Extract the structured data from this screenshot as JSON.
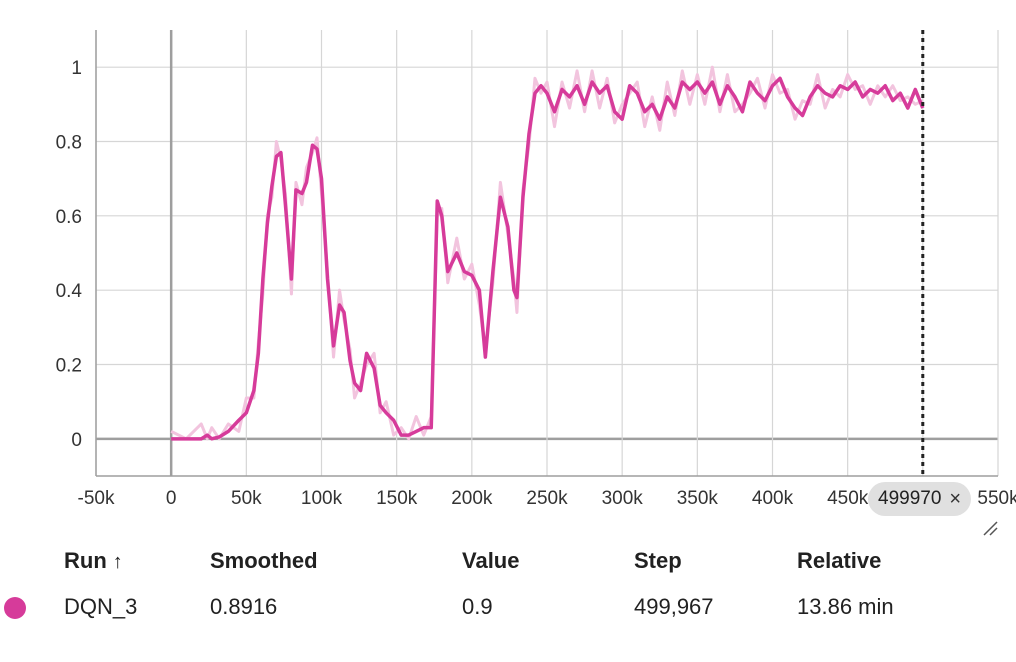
{
  "chart_data": {
    "type": "line",
    "title": "",
    "xlabel": "",
    "ylabel": "",
    "xlim": [
      -50000,
      550000
    ],
    "ylim": [
      -0.1,
      1.1
    ],
    "x_ticks": [
      -50000,
      0,
      50000,
      100000,
      150000,
      200000,
      250000,
      300000,
      350000,
      400000,
      450000,
      500000,
      550000
    ],
    "x_tick_labels": [
      "-50k",
      "0",
      "50k",
      "100k",
      "150k",
      "200k",
      "250k",
      "300k",
      "350k",
      "400k",
      "450k",
      "500k",
      "550k"
    ],
    "y_ticks": [
      0,
      0.2,
      0.4,
      0.6,
      0.8,
      1
    ],
    "y_tick_labels": [
      "0",
      "0.2",
      "0.4",
      "0.6",
      "0.8",
      "1"
    ],
    "grid": true,
    "series": [
      {
        "name": "DQN_3",
        "color": "#d63b9a",
        "raw_color": "#f2c4de",
        "points": [
          [
            0,
            0
          ],
          [
            10000,
            0
          ],
          [
            20000,
            0
          ],
          [
            24000,
            0.01
          ],
          [
            27000,
            0
          ],
          [
            32000,
            0.005
          ],
          [
            38000,
            0.02
          ],
          [
            45000,
            0.05
          ],
          [
            50000,
            0.07
          ],
          [
            55000,
            0.13
          ],
          [
            58000,
            0.23
          ],
          [
            61000,
            0.43
          ],
          [
            64000,
            0.58
          ],
          [
            67000,
            0.68
          ],
          [
            70000,
            0.76
          ],
          [
            73000,
            0.77
          ],
          [
            76000,
            0.63
          ],
          [
            80000,
            0.43
          ],
          [
            83000,
            0.67
          ],
          [
            87000,
            0.66
          ],
          [
            90000,
            0.69
          ],
          [
            94000,
            0.79
          ],
          [
            97000,
            0.78
          ],
          [
            100000,
            0.7
          ],
          [
            104000,
            0.43
          ],
          [
            108000,
            0.25
          ],
          [
            112000,
            0.36
          ],
          [
            115000,
            0.34
          ],
          [
            119000,
            0.21
          ],
          [
            122000,
            0.15
          ],
          [
            126000,
            0.13
          ],
          [
            130000,
            0.23
          ],
          [
            135000,
            0.19
          ],
          [
            139000,
            0.09
          ],
          [
            143000,
            0.07
          ],
          [
            148000,
            0.05
          ],
          [
            153000,
            0.01
          ],
          [
            158000,
            0.01
          ],
          [
            163000,
            0.02
          ],
          [
            168000,
            0.03
          ],
          [
            173000,
            0.03
          ],
          [
            177000,
            0.64
          ],
          [
            180000,
            0.6
          ],
          [
            184000,
            0.45
          ],
          [
            190000,
            0.5
          ],
          [
            195000,
            0.45
          ],
          [
            200000,
            0.44
          ],
          [
            205000,
            0.4
          ],
          [
            209000,
            0.22
          ],
          [
            214000,
            0.45
          ],
          [
            219000,
            0.65
          ],
          [
            224000,
            0.57
          ],
          [
            228000,
            0.4
          ],
          [
            230000,
            0.38
          ],
          [
            234000,
            0.65
          ],
          [
            238000,
            0.82
          ],
          [
            242000,
            0.93
          ],
          [
            246000,
            0.95
          ],
          [
            250000,
            0.93
          ],
          [
            255000,
            0.88
          ],
          [
            260000,
            0.94
          ],
          [
            265000,
            0.92
          ],
          [
            270000,
            0.95
          ],
          [
            275000,
            0.9
          ],
          [
            280000,
            0.96
          ],
          [
            285000,
            0.93
          ],
          [
            290000,
            0.95
          ],
          [
            295000,
            0.88
          ],
          [
            300000,
            0.86
          ],
          [
            305000,
            0.95
          ],
          [
            310000,
            0.93
          ],
          [
            315000,
            0.88
          ],
          [
            320000,
            0.9
          ],
          [
            325000,
            0.86
          ],
          [
            330000,
            0.92
          ],
          [
            335000,
            0.89
          ],
          [
            340000,
            0.96
          ],
          [
            345000,
            0.94
          ],
          [
            350000,
            0.96
          ],
          [
            355000,
            0.93
          ],
          [
            360000,
            0.96
          ],
          [
            365000,
            0.9
          ],
          [
            370000,
            0.95
          ],
          [
            375000,
            0.92
          ],
          [
            380000,
            0.88
          ],
          [
            385000,
            0.96
          ],
          [
            390000,
            0.93
          ],
          [
            395000,
            0.91
          ],
          [
            400000,
            0.95
          ],
          [
            405000,
            0.97
          ],
          [
            410000,
            0.92
          ],
          [
            415000,
            0.89
          ],
          [
            420000,
            0.87
          ],
          [
            425000,
            0.92
          ],
          [
            430000,
            0.95
          ],
          [
            435000,
            0.93
          ],
          [
            440000,
            0.92
          ],
          [
            445000,
            0.95
          ],
          [
            450000,
            0.94
          ],
          [
            455000,
            0.96
          ],
          [
            460000,
            0.92
          ],
          [
            465000,
            0.94
          ],
          [
            470000,
            0.93
          ],
          [
            475000,
            0.95
          ],
          [
            480000,
            0.91
          ],
          [
            485000,
            0.93
          ],
          [
            490000,
            0.89
          ],
          [
            495000,
            0.94
          ],
          [
            499967,
            0.89
          ]
        ]
      }
    ],
    "hover_step": 499970
  },
  "hover": {
    "step_label": "499970",
    "close_glyph": "×"
  },
  "table": {
    "headers": {
      "run": "Run",
      "sort_arrow": "↑",
      "smoothed": "Smoothed",
      "value": "Value",
      "step": "Step",
      "relative": "Relative"
    },
    "rows": [
      {
        "color": "#d63b9a",
        "run": "DQN_3",
        "smoothed": "0.8916",
        "value": "0.9",
        "step": "499,967",
        "relative": "13.86 min"
      }
    ]
  }
}
